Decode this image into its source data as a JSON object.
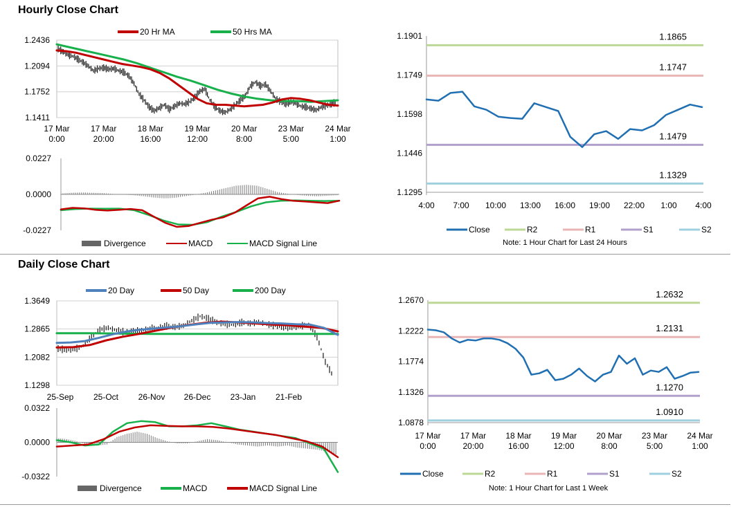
{
  "sections": {
    "hourly_title": "Hourly Close Chart",
    "daily_title": "Daily Close Chart"
  },
  "notes": {
    "hourly_pivot": "Note: 1 Hour Chart for Last 24 Hours",
    "weekly_pivot": "Note: 1 Hour Chart for Last 1 Week"
  },
  "colors": {
    "price": "#1a1a1a",
    "ma_red": "#c00000",
    "ma_green": "#17b04a",
    "ma_blue": "#4f81bd",
    "close": "#1f6fb2",
    "r2": "#bcd896",
    "r1": "#e9b5b5",
    "s1": "#b1a0cc",
    "s2": "#9fd0df",
    "divergence": "#777777",
    "grid": "#d0d0d0"
  },
  "chart_data": [
    {
      "id": "hourly-price",
      "type": "line",
      "legend": [
        "20 Hr MA",
        "50 Hrs MA"
      ],
      "ylim": [
        1.1411,
        1.2436
      ],
      "yticks": [
        "1.2436",
        "1.2094",
        "1.1752",
        "1.1411"
      ],
      "xticks": [
        [
          "17 Mar",
          "0:00"
        ],
        [
          "17 Mar",
          "20:00"
        ],
        [
          "18 Mar",
          "16:00"
        ],
        [
          "19 Mar",
          "12:00"
        ],
        [
          "20 Mar",
          "8:00"
        ],
        [
          "23 Mar",
          "5:00"
        ],
        [
          "24 Mar",
          "1:00"
        ]
      ],
      "series": [
        {
          "name": "Price",
          "values": [
            1.232,
            1.228,
            1.224,
            1.222,
            1.218,
            1.214,
            1.209,
            1.203,
            1.206,
            1.207,
            1.205,
            1.206,
            1.203,
            1.201,
            1.196,
            1.186,
            1.172,
            1.164,
            1.155,
            1.15,
            1.154,
            1.158,
            1.152,
            1.156,
            1.16,
            1.159,
            1.162,
            1.168,
            1.176,
            1.179,
            1.164,
            1.155,
            1.15,
            1.148,
            1.152,
            1.158,
            1.164,
            1.17,
            1.183,
            1.188,
            1.183,
            1.185,
            1.176,
            1.166,
            1.162,
            1.159,
            1.162,
            1.16,
            1.156,
            1.155,
            1.153,
            1.151,
            1.155,
            1.157,
            1.159,
            1.162
          ]
        },
        {
          "name": "20 Hr MA",
          "values": [
            1.23,
            1.229,
            1.227,
            1.224,
            1.221,
            1.218,
            1.215,
            1.212,
            1.21,
            1.208,
            1.205,
            1.2,
            1.193,
            1.184,
            1.175,
            1.166,
            1.16,
            1.158,
            1.158,
            1.157,
            1.156,
            1.157,
            1.158,
            1.161,
            1.165,
            1.167,
            1.166,
            1.164,
            1.161,
            1.158,
            1.157
          ]
        },
        {
          "name": "50 Hrs MA",
          "values": [
            1.238,
            1.234,
            1.23,
            1.226,
            1.222,
            1.218,
            1.213,
            1.207,
            1.201,
            1.195,
            1.19,
            1.184,
            1.178,
            1.173,
            1.169,
            1.166,
            1.164,
            1.163,
            1.163,
            1.162,
            1.163,
            1.164
          ]
        }
      ]
    },
    {
      "id": "hourly-macd",
      "type": "line",
      "legend": [
        "Divergence",
        "MACD",
        "MACD Signal Line"
      ],
      "ylim": [
        -0.0227,
        0.0227
      ],
      "yticks": [
        "0.0227",
        "0.0000",
        "-0.0227"
      ],
      "series": [
        {
          "name": "Divergence",
          "values": [
            0.0005,
            0.001,
            0.0012,
            0.001,
            0.0008,
            0.0003,
            -0.0001,
            -0.0005,
            -0.0012,
            -0.002,
            -0.0025,
            -0.0022,
            -0.0012,
            -0.0002,
            0.001,
            0.0025,
            0.004,
            0.0055,
            0.006,
            0.0055,
            0.0035,
            0.0015,
            0.0004,
            -0.0004,
            -0.001,
            -0.0012,
            -0.0008,
            -0.0004
          ]
        },
        {
          "name": "MACD",
          "values": [
            -0.0095,
            -0.0085,
            -0.0088,
            -0.0098,
            -0.0102,
            -0.0098,
            -0.0092,
            -0.01,
            -0.014,
            -0.018,
            -0.0205,
            -0.02,
            -0.018,
            -0.016,
            -0.0145,
            -0.0115,
            -0.007,
            -0.0025,
            -0.0015,
            -0.003,
            -0.004,
            -0.0045,
            -0.005,
            -0.0055,
            -0.004
          ]
        },
        {
          "name": "MACD Signal Line",
          "values": [
            -0.01,
            -0.0093,
            -0.009,
            -0.0091,
            -0.009,
            -0.01,
            -0.013,
            -0.0165,
            -0.019,
            -0.0192,
            -0.0175,
            -0.014,
            -0.011,
            -0.0075,
            -0.005,
            -0.004,
            -0.0038,
            -0.004,
            -0.0042,
            -0.004
          ]
        }
      ]
    },
    {
      "id": "hourly-pivot",
      "type": "line",
      "ylim": [
        1.1295,
        1.1901
      ],
      "yticks": [
        "1.1901",
        "1.1749",
        "1.1598",
        "1.1446",
        "1.1295"
      ],
      "xticks": [
        "4:00",
        "7:00",
        "10:00",
        "13:00",
        "16:00",
        "19:00",
        "22:00",
        "1:00",
        "4:00"
      ],
      "levels": [
        {
          "name": "R2",
          "value": 1.1865,
          "label": "1.1865"
        },
        {
          "name": "R1",
          "value": 1.1747,
          "label": "1.1747"
        },
        {
          "name": "S1",
          "value": 1.1479,
          "label": "1.1479"
        },
        {
          "name": "S2",
          "value": 1.1329,
          "label": "1.1329"
        }
      ],
      "series": [
        {
          "name": "Close",
          "values": [
            1.1655,
            1.165,
            1.168,
            1.1685,
            1.1628,
            1.1615,
            1.1588,
            1.1583,
            1.158,
            1.164,
            1.1625,
            1.161,
            1.151,
            1.147,
            1.152,
            1.1532,
            1.1502,
            1.154,
            1.1535,
            1.1555,
            1.1595,
            1.1615,
            1.1635,
            1.1625
          ]
        }
      ],
      "legend": [
        "Close",
        "R2",
        "R1",
        "S1",
        "S2"
      ]
    },
    {
      "id": "daily-price",
      "type": "line",
      "legend": [
        "20 Day",
        "50 Day",
        "200 Day"
      ],
      "ylim": [
        1.1298,
        1.3649
      ],
      "yticks": [
        "1.3649",
        "1.2865",
        "1.2082",
        "1.1298"
      ],
      "xticks": [
        "25-Sep",
        "25-Oct",
        "26-Nov",
        "26-Dec",
        "23-Jan",
        "21-Feb"
      ],
      "series": [
        {
          "name": "Price",
          "values": [
            1.232,
            1.228,
            1.23,
            1.24,
            1.265,
            1.285,
            1.29,
            1.283,
            1.278,
            1.28,
            1.282,
            1.288,
            1.29,
            1.295,
            1.292,
            1.296,
            1.31,
            1.322,
            1.316,
            1.305,
            1.3,
            1.298,
            1.305,
            1.302,
            1.306,
            1.3,
            1.295,
            1.292,
            1.291,
            1.294,
            1.3,
            1.265,
            1.195,
            1.152
          ]
        },
        {
          "name": "20 Day",
          "values": [
            1.248,
            1.249,
            1.253,
            1.262,
            1.272,
            1.28,
            1.285,
            1.288,
            1.291,
            1.295,
            1.3,
            1.304,
            1.305,
            1.306,
            1.305,
            1.303,
            1.302,
            1.3,
            1.299,
            1.29,
            1.27
          ]
        },
        {
          "name": "50 Day",
          "values": [
            1.235,
            1.236,
            1.242,
            1.255,
            1.265,
            1.273,
            1.282,
            1.291,
            1.298,
            1.304,
            1.307,
            1.305,
            1.302,
            1.299,
            1.297,
            1.293,
            1.29,
            1.28
          ]
        },
        {
          "name": "200 Day",
          "values": [
            1.275,
            1.275,
            1.274,
            1.273,
            1.273,
            1.273,
            1.273,
            1.273,
            1.273,
            1.273
          ]
        }
      ]
    },
    {
      "id": "daily-macd",
      "type": "line",
      "legend": [
        "Divergence",
        "MACD",
        "MACD Signal Line"
      ],
      "ylim": [
        -0.0322,
        0.0322
      ],
      "yticks": [
        "0.0322",
        "0.0000",
        "-0.0322"
      ],
      "series": [
        {
          "name": "Divergence",
          "values": [
            0.004,
            0.003,
            0.001,
            -0.002,
            -0.003,
            -0.002,
            0.005,
            0.008,
            0.01,
            0.008,
            0.004,
            0.001,
            -0.001,
            -0.001,
            0.001,
            0.003,
            0.002,
            0.0,
            -0.002,
            -0.003,
            -0.004,
            -0.003,
            -0.004,
            -0.003,
            -0.005,
            -0.006,
            -0.007,
            -0.009,
            -0.012
          ]
        },
        {
          "name": "MACD",
          "values": [
            0.002,
            0.0,
            -0.003,
            -0.002,
            0.01,
            0.018,
            0.02,
            0.019,
            0.015,
            0.015,
            0.016,
            0.018,
            0.015,
            0.012,
            0.01,
            0.008,
            0.006,
            0.004,
            -0.001,
            -0.006,
            -0.028
          ]
        },
        {
          "name": "MACD Signal Line",
          "values": [
            -0.004,
            -0.003,
            -0.002,
            0.003,
            0.01,
            0.014,
            0.016,
            0.0155,
            0.015,
            0.015,
            0.0145,
            0.013,
            0.011,
            0.009,
            0.007,
            0.004,
            0.001,
            -0.004,
            -0.014
          ]
        }
      ]
    },
    {
      "id": "weekly-pivot",
      "type": "line",
      "ylim": [
        1.0878,
        1.267
      ],
      "yticks": [
        "1.2670",
        "1.2222",
        "1.1774",
        "1.1326",
        "1.0878"
      ],
      "xticks": [
        [
          "17 Mar",
          "0:00"
        ],
        [
          "17 Mar",
          "20:00"
        ],
        [
          "18 Mar",
          "16:00"
        ],
        [
          "19 Mar",
          "12:00"
        ],
        [
          "20 Mar",
          "8:00"
        ],
        [
          "23 Mar",
          "5:00"
        ],
        [
          "24 Mar",
          "1:00"
        ]
      ],
      "levels": [
        {
          "name": "R2",
          "value": 1.2632,
          "label": "1.2632"
        },
        {
          "name": "R1",
          "value": 1.2131,
          "label": "1.2131"
        },
        {
          "name": "S1",
          "value": 1.127,
          "label": "1.1270"
        },
        {
          "name": "S2",
          "value": 1.091,
          "label": "1.0910"
        }
      ],
      "series": [
        {
          "name": "Close",
          "values": [
            1.224,
            1.223,
            1.22,
            1.211,
            1.205,
            1.209,
            1.208,
            1.211,
            1.211,
            1.209,
            1.204,
            1.196,
            1.183,
            1.158,
            1.16,
            1.165,
            1.15,
            1.152,
            1.158,
            1.167,
            1.156,
            1.148,
            1.158,
            1.162,
            1.186,
            1.174,
            1.182,
            1.158,
            1.164,
            1.162,
            1.169,
            1.152,
            1.156,
            1.161,
            1.162
          ]
        }
      ],
      "legend": [
        "Close",
        "R2",
        "R1",
        "S1",
        "S2"
      ]
    }
  ]
}
